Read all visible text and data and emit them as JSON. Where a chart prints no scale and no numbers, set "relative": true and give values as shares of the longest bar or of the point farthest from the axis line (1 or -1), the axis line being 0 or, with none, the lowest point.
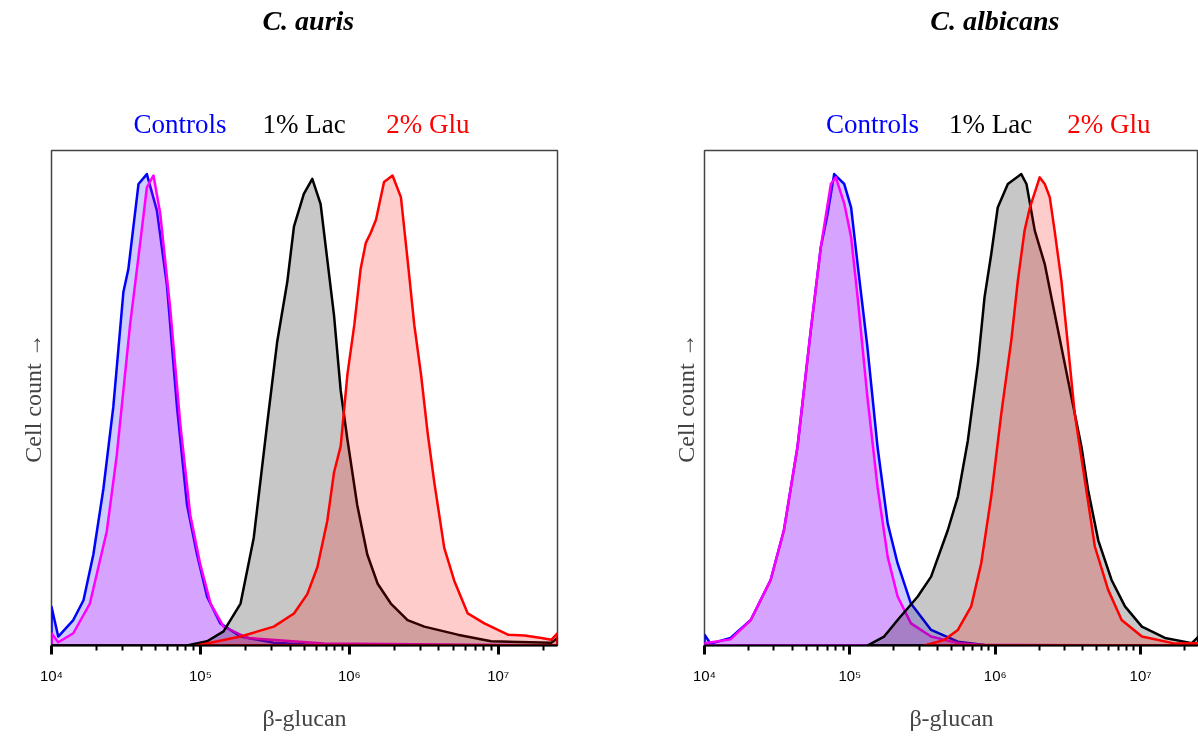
{
  "chart_data": [
    {
      "type": "area",
      "title": "C. auris",
      "xlabel": "β-glucan",
      "ylabel": "Cell count →",
      "relative": true,
      "log": "x",
      "tick_labels": "x",
      "xlim": [
        10000,
        25000000
      ],
      "xticks": [
        {
          "value": 10000,
          "label": "10⁴"
        },
        {
          "value": 100000,
          "label": "10⁵"
        },
        {
          "value": 1000000,
          "label": "10⁶"
        },
        {
          "value": 10000000,
          "label": "10⁷"
        }
      ],
      "series": [
        {
          "name": "Controls",
          "color": "#0000ff",
          "x": [
            10000,
            11100,
            14000,
            16400,
            19100,
            22300,
            26000,
            30400,
            32800,
            35500,
            38400,
            43700,
            51000,
            59600,
            69600,
            81300,
            94900,
            111000,
            136000,
            186000,
            311000,
            676000,
            25000000
          ],
          "values": [
            0.082,
            0.019,
            0.054,
            0.096,
            0.193,
            0.332,
            0.506,
            0.75,
            0.798,
            0.889,
            0.979,
            1.0,
            0.923,
            0.764,
            0.506,
            0.298,
            0.193,
            0.103,
            0.047,
            0.019,
            0.006,
            0,
            0
          ]
        },
        {
          "color": "#ff00ff",
          "x": [
            10000,
            11100,
            14000,
            18100,
            23500,
            27400,
            33700,
            39400,
            43700,
            48400,
            53700,
            62700,
            73200,
            85500,
            99800,
            117000,
            143000,
            206000,
            676000,
            25000000
          ],
          "values": [
            0.026,
            0.007,
            0.026,
            0.089,
            0.242,
            0.402,
            0.68,
            0.854,
            0.972,
            0.997,
            0.917,
            0.715,
            0.471,
            0.277,
            0.172,
            0.089,
            0.04,
            0.016,
            0.004,
            0
          ]
        },
        {
          "name": "1% Lac",
          "color": "#000000",
          "x": [
            10000,
            81300,
            111000,
            143000,
            186000,
            228000,
            281000,
            328000,
            383000,
            425000,
            495000,
            564000,
            641000,
            711000,
            789000,
            875000,
            971000,
            1130000,
            1320000,
            1550000,
            1900000,
            2460000,
            3190000,
            5340000,
            8960000,
            22700000,
            25000000
          ],
          "values": [
            0,
            0,
            0.009,
            0.03,
            0.089,
            0.228,
            0.471,
            0.645,
            0.771,
            0.889,
            0.958,
            0.99,
            0.937,
            0.819,
            0.701,
            0.541,
            0.437,
            0.298,
            0.193,
            0.131,
            0.089,
            0.054,
            0.04,
            0.023,
            0.009,
            0.006,
            0.016
          ]
        },
        {
          "name": "2% Glu",
          "color": "#ff0000",
          "x": [
            94900,
            186000,
            311000,
            425000,
            522000,
            610000,
            711000,
            789000,
            875000,
            971000,
            1080000,
            1190000,
            1290000,
            1390000,
            1510000,
            1710000,
            1950000,
            2220000,
            2460000,
            2730000,
            3030000,
            3360000,
            3720000,
            4340000,
            5070000,
            6240000,
            8070000,
            11600000,
            15000000,
            19500000,
            22700000,
            25000000
          ],
          "values": [
            0,
            0.019,
            0.04,
            0.068,
            0.109,
            0.166,
            0.264,
            0.367,
            0.423,
            0.575,
            0.68,
            0.798,
            0.854,
            0.875,
            0.903,
            0.983,
            0.997,
            0.951,
            0.819,
            0.68,
            0.575,
            0.45,
            0.346,
            0.207,
            0.137,
            0.068,
            0.047,
            0.023,
            0.021,
            0.016,
            0.012,
            0.026
          ]
        }
      ]
    },
    {
      "type": "area",
      "title": "C. albicans",
      "xlabel": "β-glucan",
      "ylabel": "Cell count →",
      "relative": true,
      "log": "x",
      "tick_labels": "x",
      "xlim": [
        10000,
        25000000
      ],
      "xticks": [
        {
          "value": 10000,
          "label": "10⁴"
        },
        {
          "value": 100000,
          "label": "10⁵"
        },
        {
          "value": 1000000,
          "label": "10⁶"
        },
        {
          "value": 10000000,
          "label": "10⁷"
        }
      ],
      "series": [
        {
          "name": "Controls",
          "color": "#0000ff",
          "x": [
            10000,
            11000,
            15100,
            20800,
            28500,
            35200,
            43600,
            53800,
            63100,
            70200,
            78000,
            91400,
            102000,
            113000,
            132000,
            155000,
            182000,
            213000,
            263000,
            362000,
            553000,
            844000,
            1590000,
            25000000
          ],
          "values": [
            0.023,
            0.004,
            0.016,
            0.054,
            0.139,
            0.245,
            0.421,
            0.668,
            0.845,
            0.915,
            1.0,
            0.979,
            0.929,
            0.809,
            0.633,
            0.421,
            0.259,
            0.174,
            0.089,
            0.033,
            0.008,
            0.001,
            0,
            0
          ]
        },
        {
          "color": "#ff00ff",
          "x": [
            10000,
            15100,
            20800,
            28500,
            35200,
            43600,
            53800,
            63100,
            74000,
            80000,
            91400,
            102000,
            113000,
            132000,
            155000,
            182000,
            213000,
            263000,
            362000,
            553000,
            844000,
            25000000
          ],
          "values": [
            0.005,
            0.013,
            0.054,
            0.139,
            0.245,
            0.421,
            0.668,
            0.845,
            0.979,
            0.993,
            0.938,
            0.866,
            0.739,
            0.527,
            0.336,
            0.188,
            0.104,
            0.047,
            0.019,
            0.005,
            0.001,
            0
          ]
        },
        {
          "name": "1% Lac",
          "color": "#000000",
          "x": [
            132000,
            172000,
            213000,
            250000,
            293000,
            362000,
            472000,
            553000,
            648000,
            760000,
            844000,
            938000,
            1040000,
            1220000,
            1510000,
            1640000,
            1870000,
            2190000,
            2430000,
            2850000,
            3340000,
            3920000,
            4350000,
            5110000,
            6310000,
            7800000,
            10200000,
            14700000,
            22500000,
            25000000
          ],
          "values": [
            0,
            0.019,
            0.054,
            0.079,
            0.104,
            0.146,
            0.245,
            0.316,
            0.435,
            0.598,
            0.739,
            0.83,
            0.929,
            0.979,
            1.0,
            0.979,
            0.88,
            0.809,
            0.739,
            0.633,
            0.527,
            0.421,
            0.33,
            0.223,
            0.139,
            0.083,
            0.04,
            0.016,
            0.005,
            0.019
          ]
        },
        {
          "name": "2% Glu",
          "color": "#ff0000",
          "x": [
            326000,
            447000,
            553000,
            683000,
            800000,
            938000,
            1100000,
            1290000,
            1430000,
            1590000,
            1730000,
            1920000,
            2020000,
            2190000,
            2370000,
            2560000,
            2850000,
            3170000,
            3520000,
            4130000,
            4840000,
            5980000,
            7400000,
            10200000,
            17300000,
            25000000
          ],
          "values": [
            0,
            0.012,
            0.033,
            0.083,
            0.174,
            0.316,
            0.492,
            0.648,
            0.774,
            0.88,
            0.929,
            0.972,
            0.993,
            0.979,
            0.951,
            0.88,
            0.774,
            0.633,
            0.492,
            0.351,
            0.21,
            0.118,
            0.054,
            0.019,
            0.004,
            0.005
          ]
        }
      ]
    }
  ]
}
